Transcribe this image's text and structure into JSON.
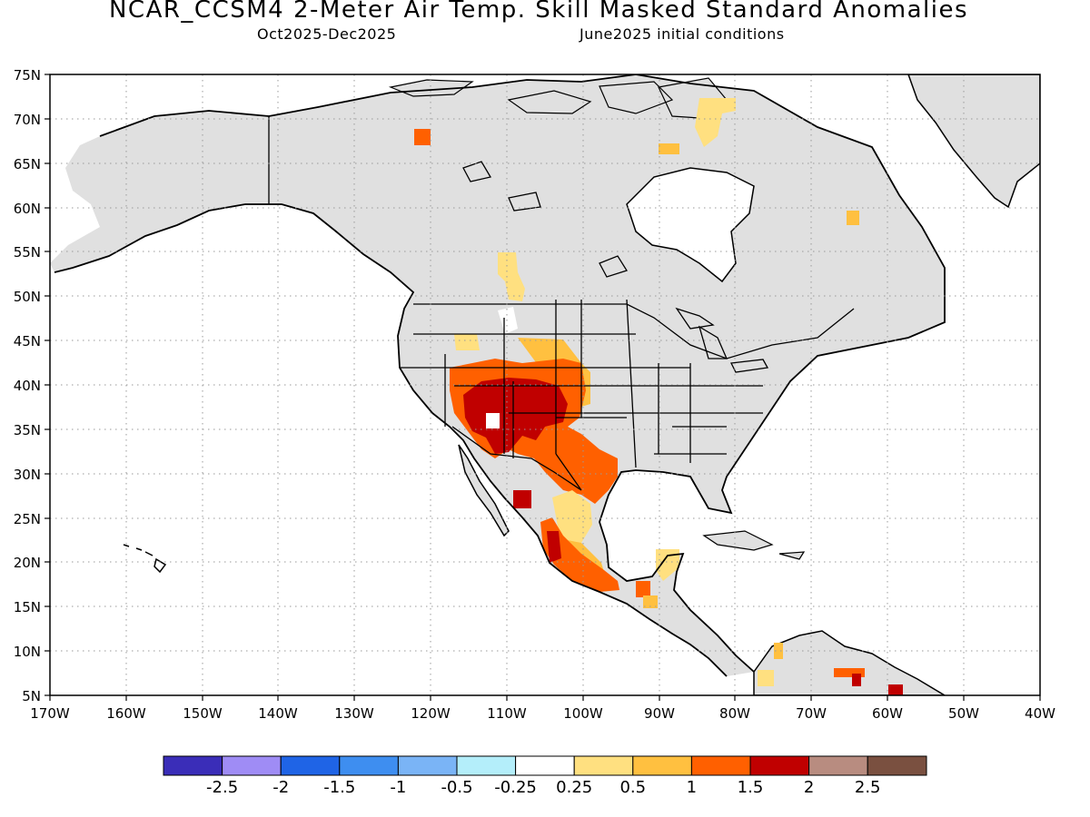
{
  "title": "NCAR_CCSM4 2-Meter Air Temp. Skill Masked Standard Anomalies",
  "subtitle_left": "Oct2025-Dec2025",
  "subtitle_right": "June2025 initial conditions",
  "map": {
    "lat_labels": [
      "75N",
      "70N",
      "65N",
      "60N",
      "55N",
      "50N",
      "45N",
      "40N",
      "35N",
      "30N",
      "25N",
      "20N",
      "15N",
      "10N",
      "5N"
    ],
    "lon_labels": [
      "170W",
      "160W",
      "150W",
      "140W",
      "130W",
      "120W",
      "110W",
      "100W",
      "90W",
      "80W",
      "70W",
      "60W",
      "50W",
      "40W"
    ],
    "lat_range": [
      5,
      75
    ],
    "lon_range": [
      -170,
      -40
    ],
    "land_color": "#e0e0e0",
    "grid": "dotted"
  },
  "colorbar": {
    "colors": [
      "#3a2db8",
      "#9f8cf5",
      "#1f64e6",
      "#3e8ef0",
      "#7ab4f6",
      "#b4eefa",
      "#ffffff",
      "#ffe080",
      "#ffc040",
      "#ff6000",
      "#c00000",
      "#b88c80",
      "#7a5040"
    ],
    "tick_labels": [
      "-2.5",
      "-2",
      "-1.5",
      "-1",
      "-0.5",
      "-0.25",
      "0.25",
      "0.5",
      "1",
      "1.5",
      "2",
      "2.5"
    ]
  }
}
